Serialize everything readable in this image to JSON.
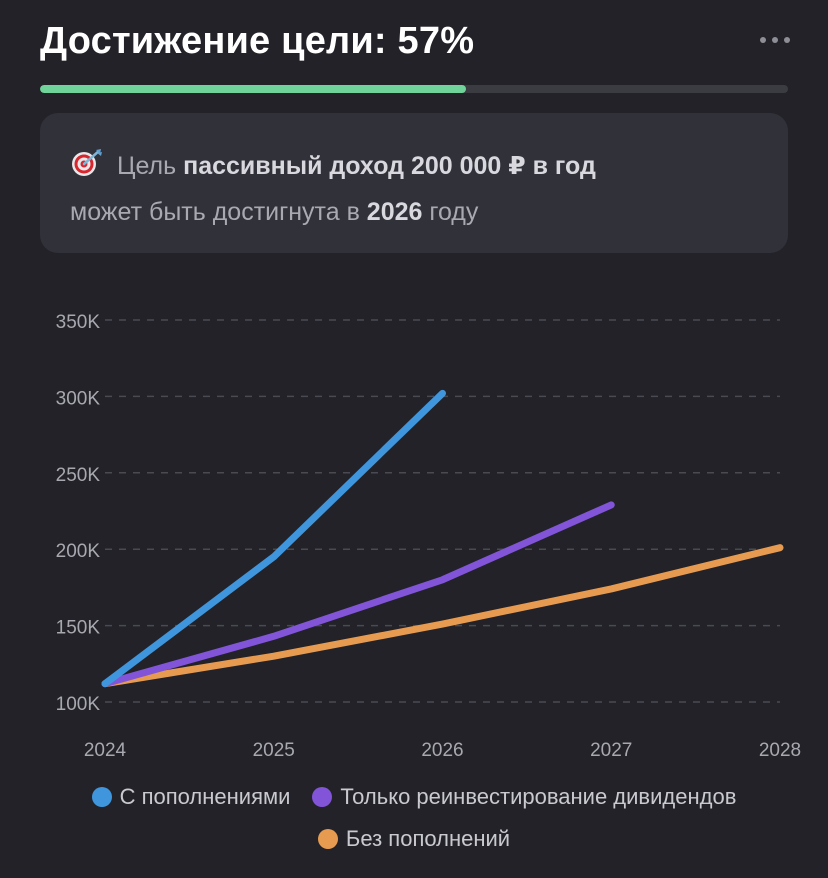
{
  "header": {
    "title": "Достижение цели: 57%",
    "more_icon": "more-horizontal-icon"
  },
  "progress": {
    "fraction": 0.57,
    "fill_color": "#6fd39a",
    "track_color": "#3b3b42"
  },
  "goal": {
    "icon": "target-dart-icon",
    "prefix": "Цель",
    "goal_name": "пассивный доход 200 000 ₽ в год",
    "middle": "может быть достигнута в",
    "year": "2026",
    "suffix": "году"
  },
  "chart_data": {
    "type": "line",
    "x": [
      "2024",
      "2025",
      "2026",
      "2027",
      "2028"
    ],
    "y_ticks": [
      "100K",
      "150K",
      "200K",
      "250K",
      "300K",
      "350K"
    ],
    "ylim": [
      100000,
      350000
    ],
    "grid": true,
    "grid_style": "dashed",
    "legend_placement": "bottom",
    "series": [
      {
        "name": "С пополнениями",
        "color": "#3f96dc",
        "values": [
          112000,
          195000,
          302000,
          null,
          null
        ]
      },
      {
        "name": "Только реинвестирование дивидендов",
        "color": "#8154d8",
        "values": [
          112000,
          143000,
          180000,
          229000,
          null
        ]
      },
      {
        "name": "Без пополнений",
        "color": "#e69b50",
        "values": [
          112000,
          130000,
          151000,
          174000,
          201000
        ]
      }
    ]
  }
}
